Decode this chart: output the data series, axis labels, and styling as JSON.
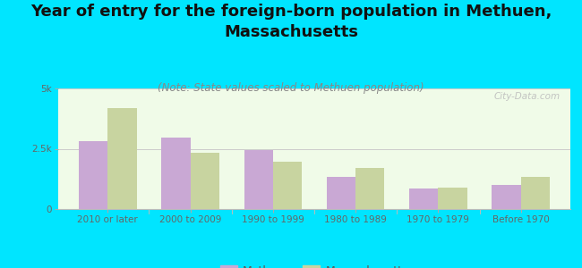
{
  "title": "Year of entry for the foreign-born population in Methuen,\nMassachusetts",
  "subtitle": "(Note: State values scaled to Methuen population)",
  "categories": [
    "2010 or later",
    "2000 to 2009",
    "1990 to 1999",
    "1980 to 1989",
    "1970 to 1979",
    "Before 1970"
  ],
  "methuen": [
    2800,
    2950,
    2450,
    1350,
    850,
    1000
  ],
  "massachusetts": [
    4200,
    2350,
    1950,
    1700,
    900,
    1350
  ],
  "methuen_color": "#c9a8d4",
  "massachusetts_color": "#c8d4a0",
  "background_outer": "#00e5ff",
  "background_plot_top": "#f0fbe8",
  "background_plot_bottom": "#e0f5d0",
  "ylim": [
    0,
    5000
  ],
  "ytick_labels": [
    "0",
    "2.5k",
    "5k"
  ],
  "bar_width": 0.35,
  "legend_methuen": "Methuen",
  "legend_massachusetts": "Massachusetts",
  "title_fontsize": 13,
  "subtitle_fontsize": 8.5,
  "tick_fontsize": 7.5,
  "legend_fontsize": 9
}
